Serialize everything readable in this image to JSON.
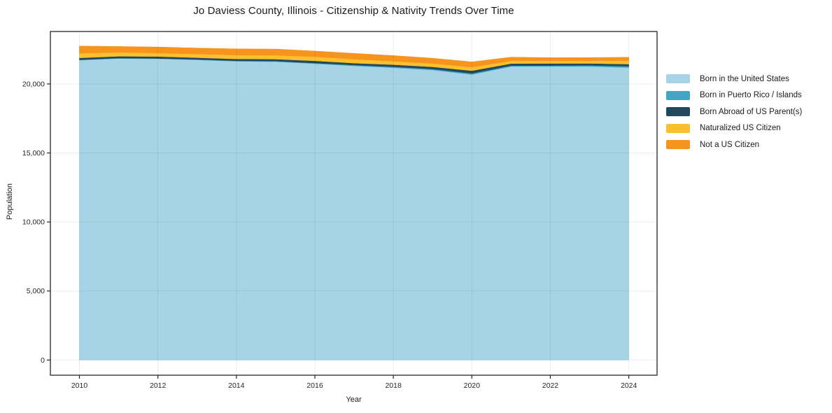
{
  "figure": {
    "title": "Jo Daviess County, Illinois - Citizenship & Nativity Trends Over Time"
  },
  "chart_data": {
    "type": "area",
    "stacked": true,
    "title": "Jo Daviess County, Illinois - Citizenship & Nativity Trends Over Time",
    "xlabel": "Year",
    "ylabel": "Population",
    "x": [
      2010,
      2011,
      2012,
      2013,
      2014,
      2015,
      2016,
      2017,
      2018,
      2019,
      2020,
      2021,
      2022,
      2023,
      2024
    ],
    "series": [
      {
        "name": "Born in the United States",
        "color": "#A6D4E6",
        "values": [
          21720,
          21845,
          21820,
          21745,
          21640,
          21615,
          21465,
          21310,
          21175,
          21010,
          20680,
          21265,
          21265,
          21265,
          21185
        ]
      },
      {
        "name": "Born in Puerto Rico / Islands",
        "color": "#41A6C4",
        "values": [
          30,
          30,
          30,
          30,
          40,
          40,
          50,
          60,
          70,
          70,
          80,
          60,
          70,
          80,
          100
        ]
      },
      {
        "name": "Born Abroad of US Parent(s)",
        "color": "#21485C",
        "values": [
          140,
          130,
          140,
          130,
          130,
          140,
          160,
          140,
          150,
          160,
          200,
          150,
          150,
          140,
          150
        ]
      },
      {
        "name": "Naturalized US Citizen",
        "color": "#FCC02F",
        "values": [
          330,
          290,
          250,
          260,
          280,
          280,
          300,
          280,
          250,
          250,
          250,
          200,
          190,
          200,
          250
        ]
      },
      {
        "name": "Not a US Citizen",
        "color": "#F7941E",
        "values": [
          530,
          420,
          440,
          440,
          450,
          450,
          410,
          430,
          410,
          380,
          390,
          270,
          230,
          230,
          250
        ]
      }
    ],
    "xticks": {
      "values": [
        2010,
        2012,
        2014,
        2016,
        2018,
        2020,
        2022,
        2024
      ],
      "labels": [
        "2010",
        "2012",
        "2014",
        "2016",
        "2018",
        "2020",
        "2022",
        "2024"
      ]
    },
    "yticks": {
      "values": [
        0,
        5000,
        10000,
        15000,
        20000
      ],
      "labels": [
        "0",
        "5,000",
        "10,000",
        "15,000",
        "20,000"
      ]
    },
    "xlim": [
      2009.26,
      2024.72
    ],
    "ylim": [
      -1100,
      23800
    ],
    "grid": true,
    "legend_position": "right",
    "axis_color": "#262626",
    "grid_color": "rgba(0,0,0,0.07)"
  }
}
